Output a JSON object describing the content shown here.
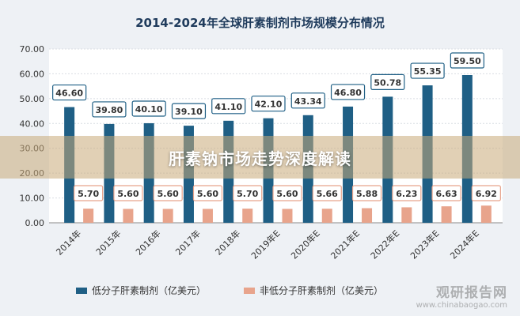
{
  "banner": {
    "text": "肝素钠市场走势深度解读"
  },
  "watermark": {
    "brand": "观研报告网",
    "url": "www.chinabaogao.com"
  },
  "colors": {
    "series1": "#1f5f85",
    "series2": "#e8a48c",
    "background": "#eef1f5"
  },
  "chart_data": {
    "type": "bar",
    "title": "2014-2024年全球肝素制剂市场规模分布情况",
    "categories": [
      "2014年",
      "2015年",
      "2016年",
      "2017年",
      "2018年",
      "2019年E",
      "2020年E",
      "2021年E",
      "2022年E",
      "2023年E",
      "2024年E"
    ],
    "series": [
      {
        "name": "低分子肝素制剂（亿美元）",
        "values": [
          46.6,
          39.8,
          40.1,
          39.1,
          41.1,
          42.1,
          43.34,
          46.8,
          50.78,
          55.35,
          59.5
        ],
        "labels": [
          "46.60",
          "39.80",
          "40.10",
          "39.10",
          "41.10",
          "42.10",
          "43.34",
          "46.80",
          "50.78",
          "55.35",
          "59.50"
        ]
      },
      {
        "name": "非低分子肝素制剂（亿美元）",
        "values": [
          5.7,
          5.6,
          5.6,
          5.6,
          5.7,
          5.6,
          5.66,
          5.88,
          6.23,
          6.63,
          6.92
        ],
        "labels": [
          "5.70",
          "5.60",
          "5.60",
          "5.60",
          "5.70",
          "5.60",
          "5.66",
          "5.88",
          "6.23",
          "6.63",
          "6.92"
        ]
      }
    ],
    "yticks": [
      "0.00",
      "10.00",
      "20.00",
      "30.00",
      "40.00",
      "50.00",
      "60.00",
      "70.00"
    ],
    "ylim": [
      0,
      70
    ],
    "xlabel": "",
    "ylabel": "",
    "grid": true,
    "legend": "bottom"
  }
}
